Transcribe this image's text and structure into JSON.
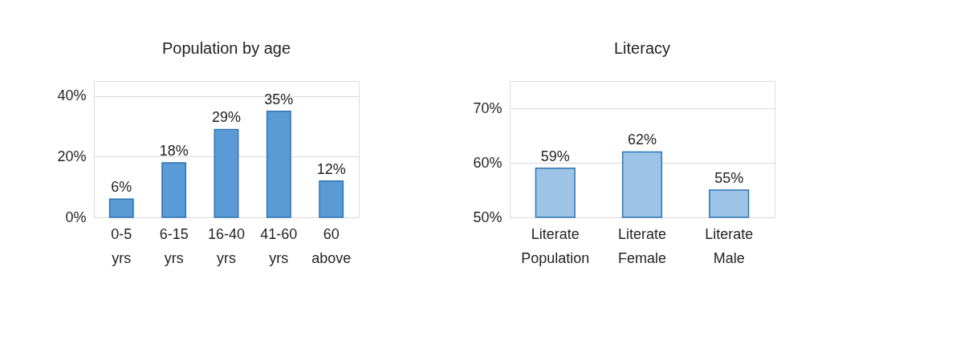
{
  "chart_data": [
    {
      "type": "bar",
      "title": "Population by age",
      "categories": [
        "0-5 yrs",
        "6-15 yrs",
        "16-40 yrs",
        "41-60 yrs",
        "60 above"
      ],
      "values": [
        6,
        18,
        29,
        35,
        12
      ],
      "value_labels": [
        "6%",
        "18%",
        "29%",
        "35%",
        "12%"
      ],
      "color": "#5b9bd5",
      "ylim": [
        0,
        45
      ],
      "yticks": [
        {
          "value": 0,
          "label": "0%"
        },
        {
          "value": 20,
          "label": "20%"
        },
        {
          "value": 40,
          "label": "40%"
        }
      ],
      "grid": "y"
    },
    {
      "type": "bar",
      "title": "Literacy",
      "categories": [
        "Literate Population",
        "Literate Female",
        "Literate Male"
      ],
      "values": [
        59,
        62,
        55
      ],
      "value_labels": [
        "59%",
        "62%",
        "55%"
      ],
      "color": "#9dc3e6",
      "ylim": [
        50,
        75
      ],
      "yticks": [
        {
          "value": 50,
          "label": "50%"
        },
        {
          "value": 60,
          "label": "60%"
        },
        {
          "value": 70,
          "label": "70%"
        }
      ],
      "grid": "y"
    }
  ]
}
